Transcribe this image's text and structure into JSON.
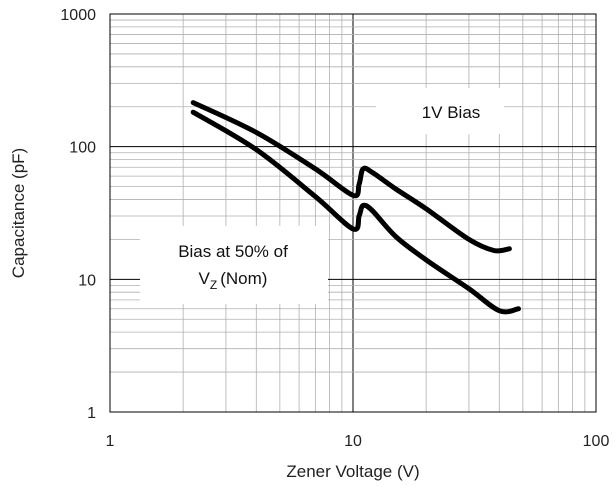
{
  "chart_data": {
    "type": "line",
    "xlabel": "Zener Voltage (V)",
    "ylabel": "Capacitance (pF)",
    "x_scale": "log",
    "y_scale": "log",
    "xlim": [
      1,
      100
    ],
    "ylim": [
      1,
      1000
    ],
    "x_ticks": [
      {
        "value": 1,
        "label": "1"
      },
      {
        "value": 10,
        "label": "10"
      },
      {
        "value": 100,
        "label": "100"
      }
    ],
    "y_ticks": [
      {
        "value": 1,
        "label": "1"
      },
      {
        "value": 10,
        "label": "10"
      },
      {
        "value": 100,
        "label": "100"
      },
      {
        "value": 1000,
        "label": "1000"
      }
    ],
    "grid": true,
    "series": [
      {
        "points": [
          [
            2.2,
            215
          ],
          [
            4,
            128
          ],
          [
            7,
            68
          ],
          [
            10,
            43
          ],
          [
            10.6,
            52
          ],
          [
            11,
            68
          ],
          [
            12,
            64
          ],
          [
            15,
            48
          ],
          [
            20,
            34
          ],
          [
            30,
            20
          ],
          [
            38,
            16.5
          ],
          [
            44,
            17
          ]
        ]
      },
      {
        "points": [
          [
            2.2,
            182
          ],
          [
            4,
            95
          ],
          [
            7,
            42
          ],
          [
            10,
            24
          ],
          [
            10.6,
            30
          ],
          [
            11,
            36
          ],
          [
            12,
            33
          ],
          [
            15,
            21
          ],
          [
            20,
            14
          ],
          [
            30,
            8.5
          ],
          [
            40,
            5.8
          ],
          [
            48,
            6
          ]
        ]
      }
    ],
    "annotations": [
      {
        "id": "one_v_bias",
        "text": "1V Bias"
      },
      {
        "id": "half_vz",
        "line1": "Bias at 50% of",
        "line2_main": "V",
        "line2_sub": "Z",
        "line2_rest": "(Nom)"
      }
    ],
    "colors": {
      "curve": "#000000",
      "grid": "#b0b0b0",
      "axis": "#000000",
      "background": "#ffffff"
    }
  }
}
